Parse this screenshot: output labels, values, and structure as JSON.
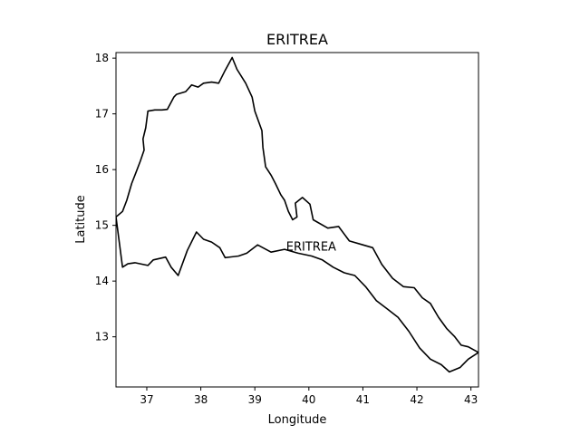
{
  "map": {
    "title": "ERITREA",
    "xlabel": "Longitude",
    "ylabel": "Latitude",
    "xlim": [
      36.43,
      43.14
    ],
    "ylim": [
      12.1,
      18.1
    ],
    "xticks": [
      37,
      38,
      39,
      40,
      41,
      42,
      43
    ],
    "yticks": [
      13,
      14,
      15,
      16,
      17,
      18
    ],
    "region_label": {
      "text": "ERITREA",
      "lon": 39.58,
      "lat": 14.55
    },
    "line_color": "#000000",
    "outline": [
      [
        36.43,
        15.15
      ],
      [
        36.55,
        15.25
      ],
      [
        36.63,
        15.45
      ],
      [
        36.72,
        15.75
      ],
      [
        36.8,
        15.95
      ],
      [
        36.88,
        16.15
      ],
      [
        36.95,
        16.35
      ],
      [
        36.93,
        16.55
      ],
      [
        36.98,
        16.75
      ],
      [
        37.0,
        16.9
      ],
      [
        37.02,
        17.05
      ],
      [
        37.15,
        17.07
      ],
      [
        37.28,
        17.07
      ],
      [
        37.38,
        17.08
      ],
      [
        37.5,
        17.3
      ],
      [
        37.55,
        17.35
      ],
      [
        37.72,
        17.4
      ],
      [
        37.83,
        17.52
      ],
      [
        37.95,
        17.48
      ],
      [
        38.05,
        17.55
      ],
      [
        38.2,
        17.57
      ],
      [
        38.33,
        17.55
      ],
      [
        38.45,
        17.78
      ],
      [
        38.58,
        18.01
      ],
      [
        38.67,
        17.8
      ],
      [
        38.83,
        17.55
      ],
      [
        38.95,
        17.3
      ],
      [
        39.0,
        17.05
      ],
      [
        39.13,
        16.7
      ],
      [
        39.15,
        16.4
      ],
      [
        39.2,
        16.05
      ],
      [
        39.3,
        15.9
      ],
      [
        39.38,
        15.75
      ],
      [
        39.48,
        15.55
      ],
      [
        39.55,
        15.45
      ],
      [
        39.62,
        15.25
      ],
      [
        39.7,
        15.1
      ],
      [
        39.78,
        15.15
      ],
      [
        39.75,
        15.4
      ],
      [
        39.88,
        15.5
      ],
      [
        40.02,
        15.38
      ],
      [
        40.08,
        15.1
      ],
      [
        40.35,
        14.95
      ],
      [
        40.55,
        14.98
      ],
      [
        40.75,
        14.72
      ],
      [
        41.0,
        14.65
      ],
      [
        41.18,
        14.6
      ],
      [
        41.35,
        14.3
      ],
      [
        41.55,
        14.05
      ],
      [
        41.75,
        13.9
      ],
      [
        41.95,
        13.88
      ],
      [
        42.1,
        13.7
      ],
      [
        42.25,
        13.6
      ],
      [
        42.4,
        13.35
      ],
      [
        42.55,
        13.15
      ],
      [
        42.7,
        13.0
      ],
      [
        42.82,
        12.85
      ],
      [
        42.95,
        12.82
      ],
      [
        43.14,
        12.72
      ],
      [
        42.95,
        12.6
      ],
      [
        42.8,
        12.45
      ],
      [
        42.6,
        12.37
      ],
      [
        42.45,
        12.5
      ],
      [
        42.25,
        12.6
      ],
      [
        42.05,
        12.8
      ],
      [
        41.85,
        13.1
      ],
      [
        41.65,
        13.35
      ],
      [
        41.45,
        13.5
      ],
      [
        41.25,
        13.65
      ],
      [
        41.05,
        13.9
      ],
      [
        40.85,
        14.1
      ],
      [
        40.65,
        14.15
      ],
      [
        40.45,
        14.25
      ],
      [
        40.25,
        14.38
      ],
      [
        40.05,
        14.45
      ],
      [
        39.8,
        14.5
      ],
      [
        39.55,
        14.57
      ],
      [
        39.3,
        14.52
      ],
      [
        39.05,
        14.65
      ],
      [
        38.85,
        14.5
      ],
      [
        38.7,
        14.45
      ],
      [
        38.45,
        14.42
      ],
      [
        38.35,
        14.6
      ],
      [
        38.2,
        14.7
      ],
      [
        38.05,
        14.75
      ],
      [
        37.92,
        14.88
      ],
      [
        37.75,
        14.55
      ],
      [
        37.58,
        14.1
      ],
      [
        37.45,
        14.25
      ],
      [
        37.35,
        14.43
      ],
      [
        37.12,
        14.38
      ],
      [
        37.02,
        14.28
      ],
      [
        36.78,
        14.33
      ],
      [
        36.65,
        14.31
      ],
      [
        36.55,
        14.25
      ],
      [
        36.43,
        15.15
      ]
    ]
  }
}
